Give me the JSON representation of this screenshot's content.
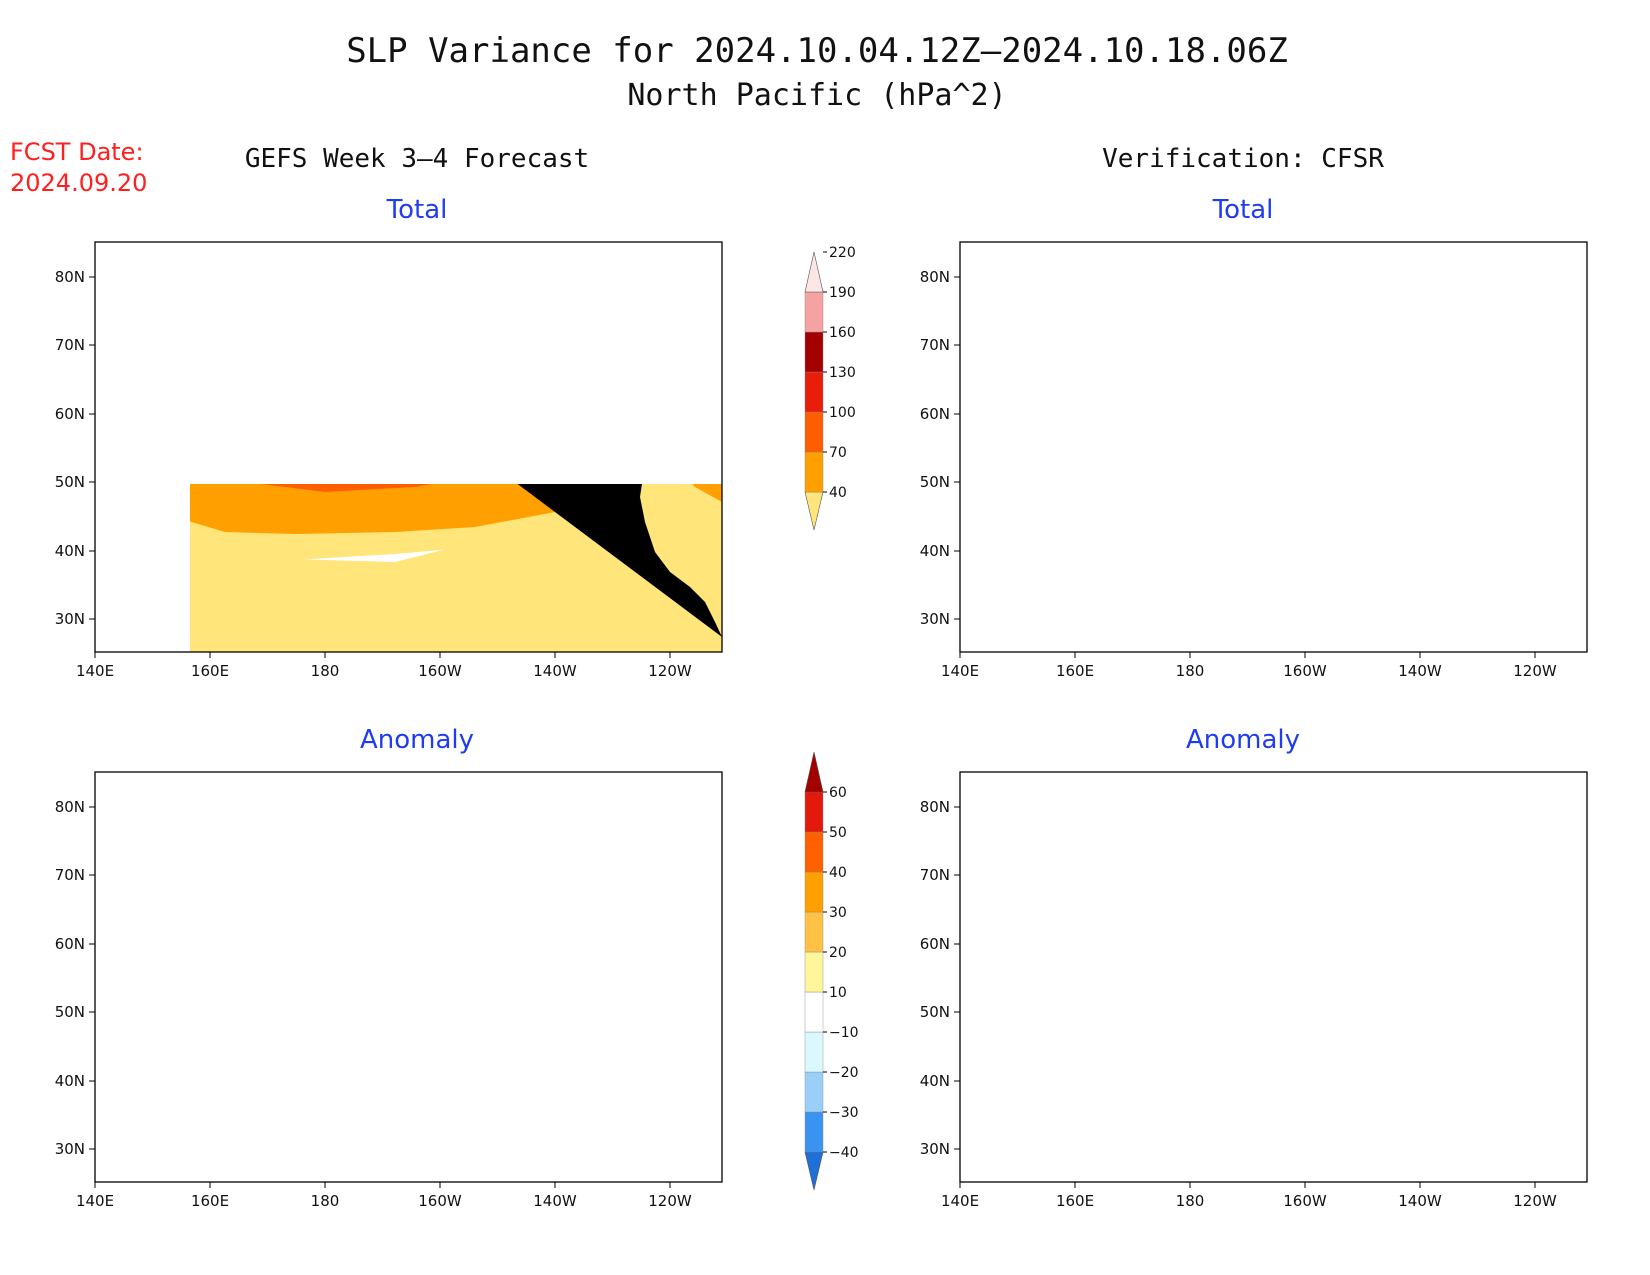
{
  "title": {
    "line1": "SLP Variance for 2024.10.04.12Z–2024.10.18.06Z",
    "line2": "North Pacific (hPa^2)"
  },
  "fcst": {
    "label": "FCST Date:",
    "date": "2024.09.20"
  },
  "columns": {
    "left": "GEFS Week 3–4 Forecast",
    "right": "Verification: CFSR"
  },
  "panel_titles": {
    "total": "Total",
    "anomaly": "Anomaly"
  },
  "axes": {
    "lon_labels": [
      "140E",
      "160E",
      "180",
      "160W",
      "140W",
      "120W"
    ],
    "lat_labels": [
      "80N",
      "70N",
      "60N",
      "50N",
      "40N",
      "30N"
    ]
  },
  "colorbars": {
    "total": {
      "labels": [
        "40",
        "70",
        "100",
        "130",
        "160",
        "190",
        "220"
      ],
      "colors": [
        "#ffe57a",
        "#ffa000",
        "#ff5e00",
        "#e81e0a",
        "#a50000",
        "#f4a2a2",
        "#fde6e6"
      ]
    },
    "anomaly": {
      "labels": [
        "−40",
        "−30",
        "−20",
        "−10",
        "10",
        "20",
        "30",
        "40",
        "50",
        "60"
      ],
      "colors": [
        "#1f6fd9",
        "#3a93f0",
        "#9ad0f7",
        "#dcf8ff",
        "#ffffff",
        "#fff59b",
        "#ffc247",
        "#ffa000",
        "#ff6100",
        "#e31a0b",
        "#a50000"
      ]
    }
  },
  "colors": {
    "fcst_text": "#ff1f1f",
    "panel_title": "#1f3cf0"
  }
}
